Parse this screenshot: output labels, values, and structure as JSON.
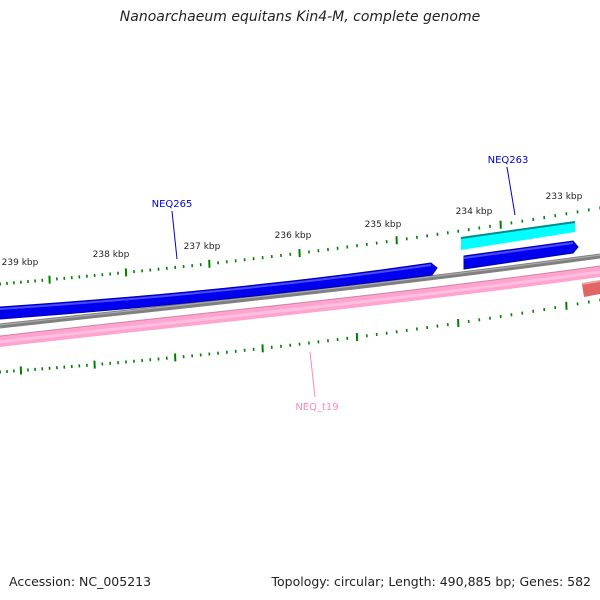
{
  "title": "Nanoarchaeum equitans Kin4-M, complete genome",
  "footer": {
    "accession": "Accession: NC_005213",
    "summary": "Topology: circular; Length: 490,885 bp; Genes: 582"
  },
  "scale_labels": [
    "239 kbp",
    "238 kbp",
    "237 kbp",
    "236 kbp",
    "235 kbp",
    "234 kbp",
    "233 kbp"
  ],
  "features": [
    {
      "name": "NEQ265",
      "color": "#0000cc",
      "track": "forward CDS"
    },
    {
      "name": "NEQ263",
      "color": "#0000cc",
      "track": "forward CDS"
    },
    {
      "name": "NEQ_t19",
      "color": "#ff88bb",
      "track": "tRNA"
    }
  ],
  "colors": {
    "cds_forward": "#0000ff",
    "cds_outline": "#0000aa",
    "cyan_feature": "#00ffff",
    "backbone": "#808080",
    "trna": "#ff99cc",
    "rrna": "#e06666",
    "tick": "#008000"
  }
}
